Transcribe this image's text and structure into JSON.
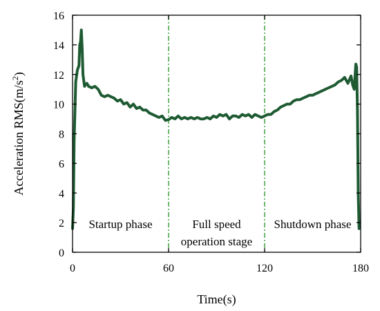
{
  "chart_data": {
    "type": "line",
    "xlabel": "Time(s)",
    "ylabel": {
      "main": "Acceleration RMS(m/s",
      "sup": "2",
      "tail": ")"
    },
    "xlim": [
      0,
      180
    ],
    "ylim": [
      0,
      16
    ],
    "xticks": [
      0,
      60,
      120,
      180
    ],
    "yticks": [
      0,
      2,
      4,
      6,
      8,
      10,
      12,
      14,
      16
    ],
    "grid": false,
    "legend": "none",
    "colors": {
      "series": "#1e5a32",
      "divider": "#2f9a2f",
      "axis": "#000000"
    },
    "series": [
      {
        "x": [
          0,
          0.5,
          1,
          2,
          3,
          4,
          4.5,
          5,
          5.5,
          6,
          6.5,
          7,
          7.5,
          8,
          9,
          10,
          12,
          14,
          16,
          18,
          20,
          22,
          24,
          26,
          28,
          30,
          32,
          34,
          36,
          38,
          40,
          42,
          44,
          46,
          48,
          50,
          52,
          54,
          56,
          58,
          60,
          62,
          64,
          66,
          68,
          70,
          72,
          74,
          76,
          78,
          80,
          82,
          84,
          86,
          88,
          90,
          92,
          94,
          96,
          98,
          100,
          102,
          104,
          106,
          108,
          110,
          112,
          114,
          116,
          118,
          120,
          122,
          124,
          126,
          128,
          130,
          132,
          134,
          136,
          138,
          140,
          142,
          144,
          146,
          148,
          150,
          152,
          154,
          156,
          158,
          160,
          162,
          164,
          166,
          168,
          170,
          172,
          174,
          175,
          176,
          177,
          177.5,
          178,
          178.5,
          179
        ],
        "values": [
          1.6,
          3.0,
          7.5,
          11.5,
          12.3,
          12.6,
          14.0,
          14.2,
          15.0,
          13.8,
          12.0,
          11.6,
          11.2,
          11.3,
          11.4,
          11.2,
          11.1,
          11.2,
          11.0,
          10.6,
          10.5,
          10.6,
          10.5,
          10.4,
          10.2,
          10.3,
          10.0,
          10.1,
          9.8,
          10.0,
          9.7,
          9.8,
          9.6,
          9.6,
          9.4,
          9.3,
          9.2,
          9.1,
          9.2,
          8.9,
          8.95,
          9.1,
          9.0,
          9.2,
          9.0,
          9.1,
          9.0,
          9.1,
          9.0,
          9.1,
          9.0,
          9.0,
          9.1,
          9.0,
          9.2,
          9.1,
          9.3,
          9.2,
          9.3,
          9.0,
          9.2,
          9.2,
          9.1,
          9.3,
          9.2,
          9.3,
          9.1,
          9.3,
          9.2,
          9.1,
          9.2,
          9.3,
          9.3,
          9.5,
          9.6,
          9.8,
          9.9,
          10.0,
          10.0,
          10.2,
          10.3,
          10.3,
          10.4,
          10.5,
          10.6,
          10.6,
          10.7,
          10.8,
          10.9,
          11.0,
          11.1,
          11.2,
          11.3,
          11.5,
          11.6,
          11.8,
          11.4,
          11.9,
          11.3,
          11.0,
          12.7,
          12.5,
          9.5,
          4.0,
          1.6
        ]
      }
    ],
    "dividers": [
      60,
      120
    ],
    "regions": [
      {
        "lines": [
          "Startup phase"
        ],
        "x": 30
      },
      {
        "lines": [
          "Full speed",
          "operation stage"
        ],
        "x": 90
      },
      {
        "lines": [
          "Shutdown phase"
        ],
        "x": 150
      }
    ]
  }
}
